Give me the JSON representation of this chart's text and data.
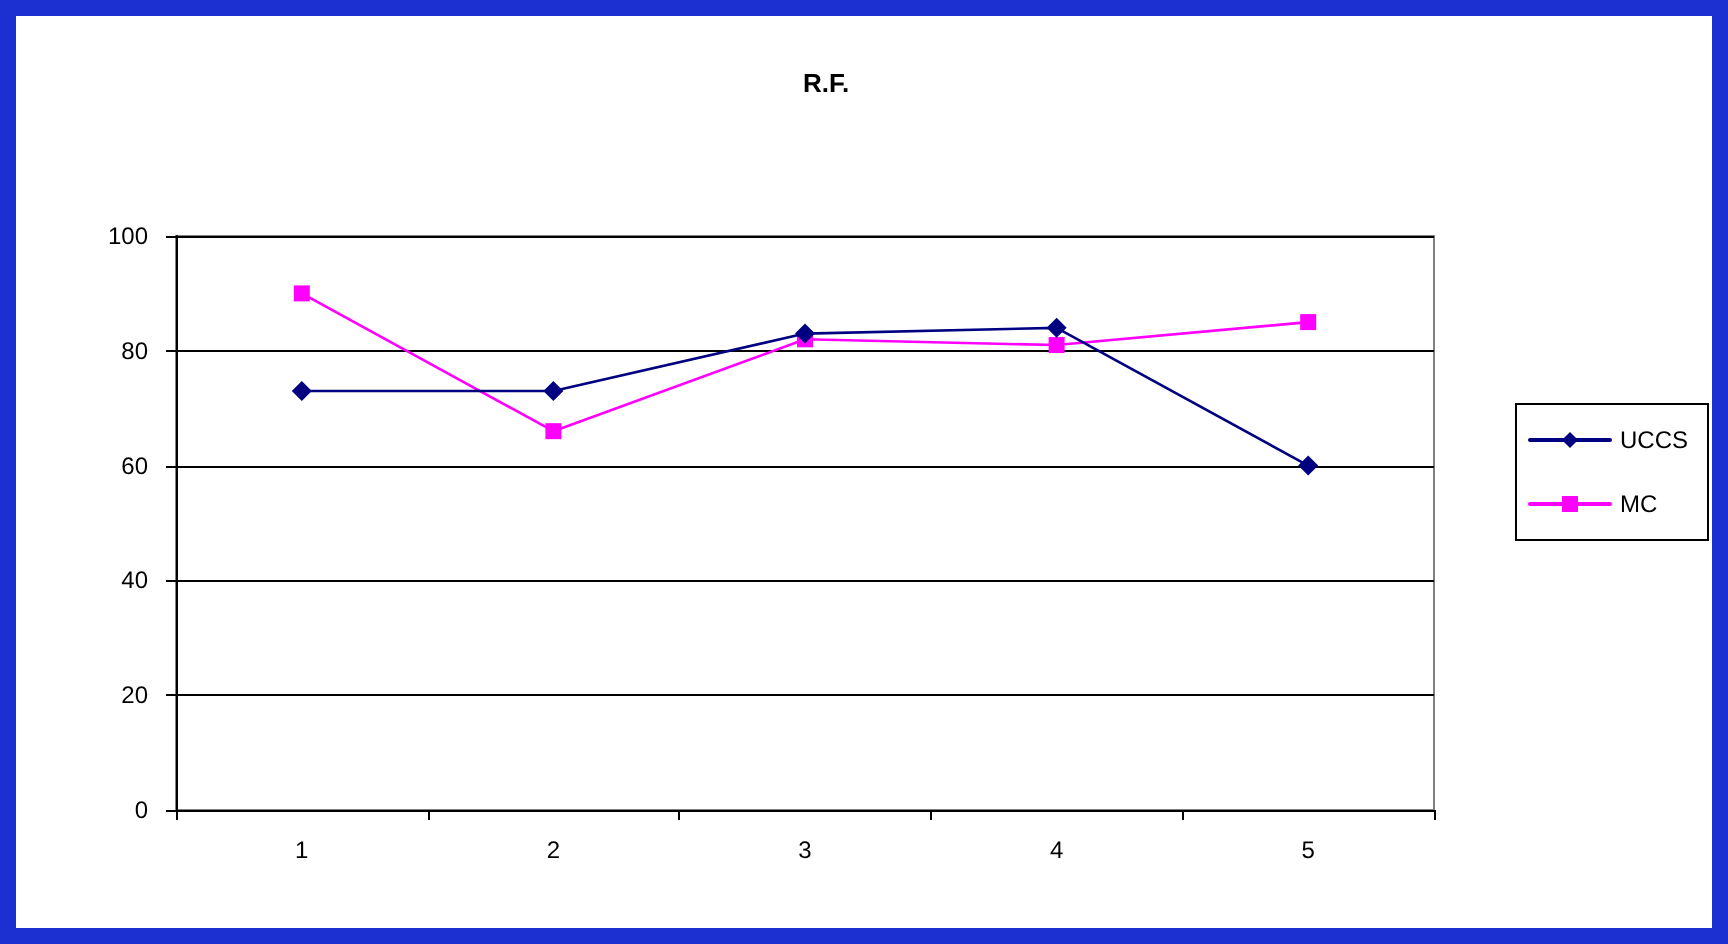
{
  "chart_data": {
    "type": "line",
    "title": "R.F.",
    "categories": [
      "1",
      "2",
      "3",
      "4",
      "5"
    ],
    "series": [
      {
        "name": "UCCS",
        "color": "#000080",
        "marker": "diamond",
        "values": [
          73,
          73,
          83,
          84,
          60
        ]
      },
      {
        "name": "MC",
        "color": "#ff00ff",
        "marker": "square",
        "values": [
          90,
          66,
          82,
          81,
          85
        ]
      }
    ],
    "ylim": [
      0,
      100
    ],
    "yticks": [
      0,
      20,
      40,
      60,
      80,
      100
    ],
    "grid": "y",
    "legend": "right",
    "line_style": "solid"
  }
}
